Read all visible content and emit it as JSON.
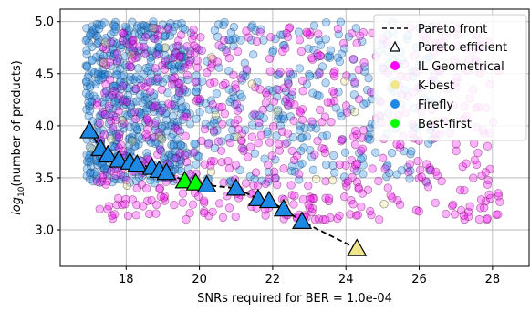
{
  "chart_data": {
    "type": "scatter",
    "xlabel": "SNRs required for BER = 1.0e-04",
    "ylabel_main": "log",
    "ylabel_sub": "10",
    "ylabel_rest": "(number of products)",
    "xlim": [
      16.2,
      29.0
    ],
    "ylim": [
      2.65,
      5.12
    ],
    "xticks": [
      "18",
      "20",
      "22",
      "24",
      "26",
      "28"
    ],
    "xtick_values": [
      18,
      20,
      22,
      24,
      26,
      28
    ],
    "yticks": [
      "3.0",
      "3.5",
      "4.0",
      "4.5",
      "5.0"
    ],
    "ytick_values": [
      3.0,
      3.5,
      4.0,
      4.5,
      5.0
    ],
    "grid": true,
    "legend_position": "top-right",
    "colors": {
      "il_geometrical": "#ff00ff",
      "k_best": "#f0e68c",
      "firefly": "#1e88e5",
      "best_first": "#00ff00",
      "pareto_front": "#000000"
    },
    "series": [
      {
        "name": "IL Geometrical",
        "key": "il_geometrical"
      },
      {
        "name": "K-best",
        "key": "k_best"
      },
      {
        "name": "Firefly",
        "key": "firefly"
      },
      {
        "name": "Best-first",
        "key": "best_first"
      }
    ],
    "pareto_front": {
      "name": "Pareto front",
      "x": [
        17.0,
        17.3,
        17.5,
        17.8,
        18.1,
        18.3,
        18.7,
        18.9,
        19.1,
        19.6,
        19.9,
        20.2,
        21.0,
        21.6,
        21.9,
        22.3,
        22.8,
        24.3
      ],
      "y": [
        3.95,
        3.78,
        3.72,
        3.67,
        3.65,
        3.63,
        3.6,
        3.57,
        3.55,
        3.47,
        3.45,
        3.43,
        3.4,
        3.3,
        3.28,
        3.2,
        3.08,
        2.82
      ]
    },
    "pareto_efficient": {
      "name": "Pareto efficient",
      "points": [
        {
          "x": 17.0,
          "y": 3.95,
          "method": "firefly"
        },
        {
          "x": 17.3,
          "y": 3.78,
          "method": "firefly"
        },
        {
          "x": 17.5,
          "y": 3.72,
          "method": "firefly"
        },
        {
          "x": 17.8,
          "y": 3.67,
          "method": "firefly"
        },
        {
          "x": 18.1,
          "y": 3.65,
          "method": "firefly"
        },
        {
          "x": 18.3,
          "y": 3.63,
          "method": "firefly"
        },
        {
          "x": 18.7,
          "y": 3.6,
          "method": "firefly"
        },
        {
          "x": 18.9,
          "y": 3.57,
          "method": "firefly"
        },
        {
          "x": 19.1,
          "y": 3.55,
          "method": "firefly"
        },
        {
          "x": 19.6,
          "y": 3.47,
          "method": "best_first"
        },
        {
          "x": 19.9,
          "y": 3.45,
          "method": "best_first"
        },
        {
          "x": 20.2,
          "y": 3.43,
          "method": "firefly"
        },
        {
          "x": 21.0,
          "y": 3.4,
          "method": "firefly"
        },
        {
          "x": 21.6,
          "y": 3.3,
          "method": "firefly"
        },
        {
          "x": 21.9,
          "y": 3.28,
          "method": "firefly"
        },
        {
          "x": 22.3,
          "y": 3.2,
          "method": "firefly"
        },
        {
          "x": 22.8,
          "y": 3.08,
          "method": "firefly"
        },
        {
          "x": 24.3,
          "y": 2.82,
          "method": "k_best"
        }
      ]
    },
    "clouds": {
      "firefly": {
        "count": 850,
        "x_range": [
          16.9,
          26.5
        ],
        "y_range": [
          3.45,
          5.0
        ],
        "dense_x_range": [
          17.0,
          19.6
        ]
      },
      "il_geometrical": {
        "count": 620,
        "x_range": [
          17.2,
          28.2
        ],
        "y_range": [
          3.0,
          4.95
        ]
      },
      "k_best": {
        "count": 25,
        "x_range": [
          16.9,
          26.0
        ],
        "y_range": [
          3.05,
          5.05
        ]
      }
    }
  }
}
